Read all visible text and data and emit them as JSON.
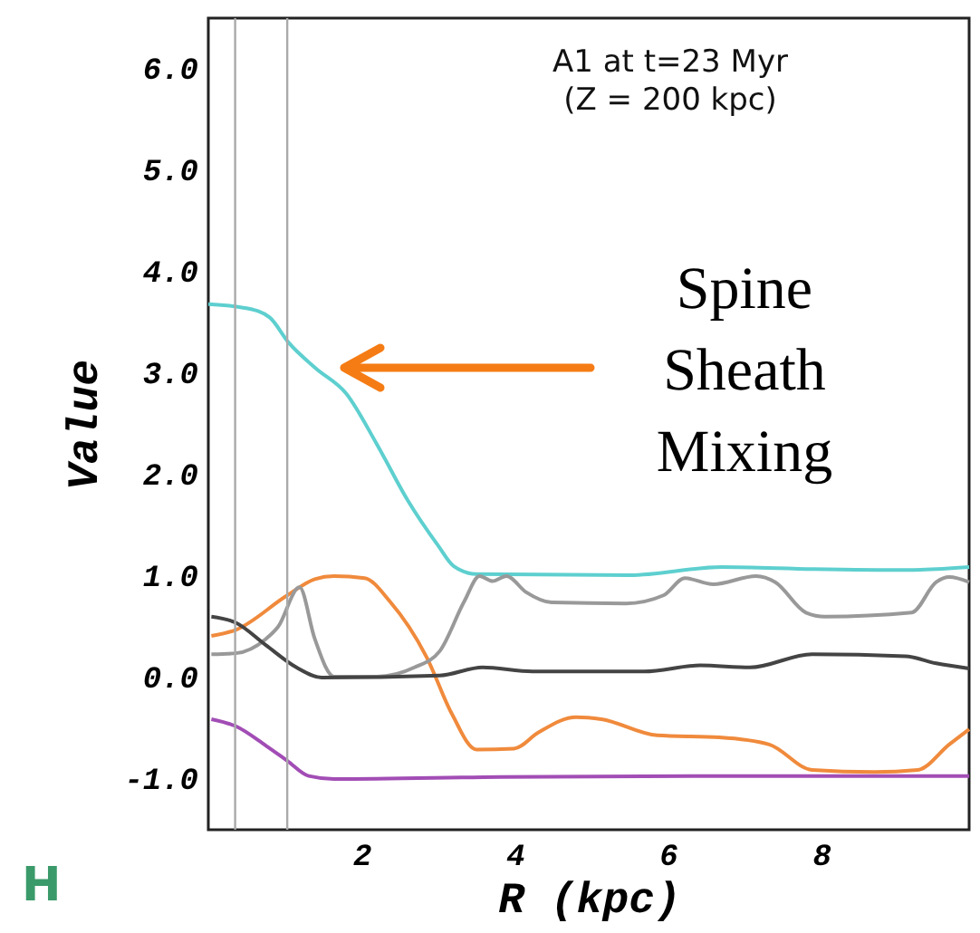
{
  "chart_data": {
    "type": "line",
    "title": "A1 at t=23 Myr",
    "subtitle": "(Z = 200 kpc)",
    "xlabel": "R (kpc)",
    "ylabel": "Value",
    "xlim": [
      0,
      9.93
    ],
    "xticks": [
      2,
      4,
      6,
      8
    ],
    "ylim": [
      -1.5,
      6.5
    ],
    "yticks": [
      {
        "value": -1,
        "label": "-1.0"
      },
      {
        "value": 0,
        "label": "0.0"
      },
      {
        "value": 1,
        "label": "1.0"
      },
      {
        "value": 2,
        "label": "2.0"
      },
      {
        "value": 3,
        "label": "3.0"
      },
      {
        "value": 4,
        "label": "4.0"
      },
      {
        "value": 5,
        "label": "5.0"
      },
      {
        "value": 6,
        "label": "6.0"
      }
    ],
    "grid": false,
    "legend": false,
    "series": [
      {
        "color": "#5ecfcf",
        "x": [
          0,
          0.5,
          0.8,
          1.05,
          1.4,
          1.8,
          2.2,
          2.6,
          3.0,
          3.2,
          3.5,
          5.5,
          6.7,
          7.9,
          9.1,
          9.93
        ],
        "values": [
          3.68,
          3.64,
          3.55,
          3.3,
          3.05,
          2.8,
          2.3,
          1.75,
          1.3,
          1.1,
          1.02,
          1.01,
          1.09,
          1.07,
          1.06,
          1.09
        ]
      },
      {
        "color": "#f08a3c",
        "x": [
          0.04,
          0.36,
          1.03,
          1.39,
          1.64,
          2.04,
          2.37,
          2.85,
          3.18,
          3.5,
          3.99,
          4.31,
          4.8,
          5.13,
          5.86,
          6.67,
          7.32,
          7.88,
          8.69,
          9.26,
          9.67,
          9.93
        ],
        "values": [
          0.41,
          0.47,
          0.81,
          0.97,
          1.0,
          0.98,
          0.75,
          0.2,
          -0.36,
          -0.71,
          -0.7,
          -0.54,
          -0.39,
          -0.41,
          -0.57,
          -0.59,
          -0.66,
          -0.91,
          -0.93,
          -0.91,
          -0.66,
          -0.51
        ]
      },
      {
        "color": "#999999",
        "x": [
          0.04,
          0.36,
          0.75,
          0.91,
          1.19,
          1.39,
          1.64,
          2.2,
          2.69,
          3.02,
          3.34,
          3.54,
          3.71,
          3.89,
          4.15,
          4.48,
          5.45,
          5.94,
          6.22,
          6.59,
          7.15,
          7.4,
          7.8,
          8.05,
          9.18,
          9.5,
          9.67,
          9.93
        ],
        "values": [
          0.23,
          0.24,
          0.38,
          0.5,
          0.89,
          0.38,
          0.01,
          0.01,
          0.1,
          0.26,
          0.75,
          1.0,
          0.95,
          1.0,
          0.84,
          0.74,
          0.73,
          0.81,
          0.98,
          0.92,
          1.0,
          0.94,
          0.64,
          0.6,
          0.64,
          0.94,
          0.99,
          0.94
        ]
      },
      {
        "color": "#444444",
        "x": [
          0.04,
          0.36,
          0.75,
          1.15,
          1.48,
          3.02,
          3.58,
          4.23,
          5.69,
          6.42,
          7.07,
          7.88,
          9.1,
          9.5,
          9.93
        ],
        "values": [
          0.6,
          0.54,
          0.32,
          0.1,
          0.0,
          0.02,
          0.1,
          0.06,
          0.06,
          0.12,
          0.1,
          0.23,
          0.21,
          0.14,
          0.09
        ]
      },
      {
        "color": "#a24db5",
        "x": [
          0.04,
          0.36,
          0.75,
          1.03,
          1.31,
          1.64,
          3.83,
          6.67,
          9.93
        ],
        "values": [
          -0.41,
          -0.48,
          -0.67,
          -0.82,
          -0.97,
          -1.0,
          -0.98,
          -0.97,
          -0.97
        ]
      }
    ],
    "ref_lines": [
      {
        "axis": "x",
        "value": 0.35,
        "color": "#aaaaaa"
      },
      {
        "axis": "x",
        "value": 1.03,
        "color": "#aaaaaa"
      }
    ],
    "annotations": [
      "Spine\nSheath\nMixing",
      "H"
    ]
  }
}
